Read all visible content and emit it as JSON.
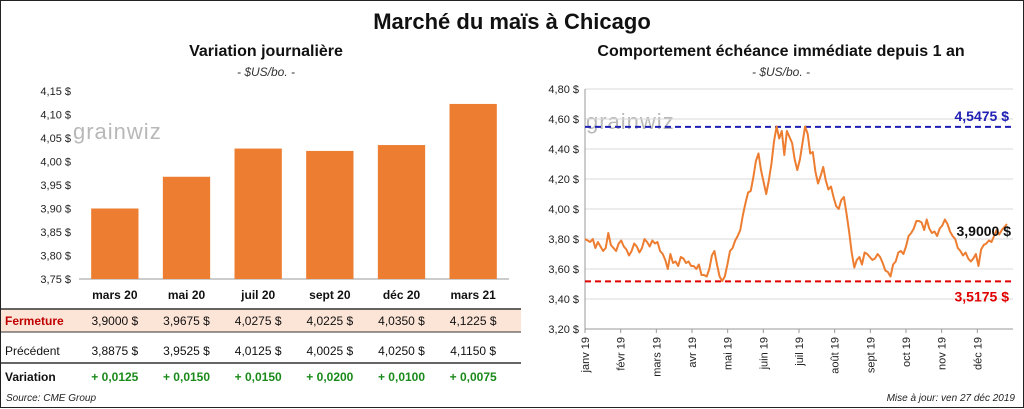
{
  "title": "Marché du maïs à Chicago",
  "left_panel": {
    "title": "Variation  journalière",
    "unit": "- $US/bo. -"
  },
  "right_panel": {
    "title": "Comportement  échéance immédiate depuis 1 an",
    "unit": "- $US/bo. -"
  },
  "watermark": "grainwiz",
  "colors": {
    "bar": "#ED7D31",
    "line": "#ED7D31",
    "high_line": "#1F1FB4",
    "low_line": "#E00000",
    "fermeture_row": "#FCE4D6",
    "positive": "#1a8a1a"
  },
  "chart_data": [
    {
      "type": "bar",
      "categories": [
        "mars 20",
        "mai 20",
        "juil 20",
        "sept 20",
        "déc 20",
        "mars 21"
      ],
      "values": [
        3.9,
        3.9675,
        4.0275,
        4.0225,
        4.035,
        4.1225
      ],
      "ylim": [
        3.75,
        4.15
      ],
      "y_ticks": [
        3.75,
        3.8,
        3.85,
        3.9,
        3.95,
        4.0,
        4.05,
        4.1,
        4.15
      ],
      "y_tick_labels": [
        "3,75 $",
        "3,80 $",
        "3,85 $",
        "3,90 $",
        "3,95 $",
        "4,00 $",
        "4,05 $",
        "4,10 $",
        "4,15 $"
      ]
    },
    {
      "type": "line",
      "x_labels": [
        "janv 19",
        "févr 19",
        "mars 19",
        "avr 19",
        "mai 19",
        "juin 19",
        "juil 19",
        "août 19",
        "sept 19",
        "oct 19",
        "nov 19",
        "déc 19"
      ],
      "x_month_start": "janv 19",
      "values": [
        3.8,
        3.79,
        3.78,
        3.8,
        3.74,
        3.78,
        3.75,
        3.72,
        3.74,
        3.84,
        3.76,
        3.74,
        3.72,
        3.77,
        3.79,
        3.75,
        3.73,
        3.69,
        3.72,
        3.77,
        3.75,
        3.71,
        3.74,
        3.8,
        3.78,
        3.75,
        3.79,
        3.77,
        3.78,
        3.72,
        3.7,
        3.66,
        3.6,
        3.7,
        3.64,
        3.65,
        3.62,
        3.68,
        3.67,
        3.64,
        3.65,
        3.62,
        3.62,
        3.6,
        3.63,
        3.56,
        3.56,
        3.55,
        3.6,
        3.69,
        3.72,
        3.63,
        3.55,
        3.52,
        3.55,
        3.63,
        3.72,
        3.74,
        3.79,
        3.82,
        3.86,
        3.96,
        4.04,
        4.11,
        4.12,
        4.21,
        4.32,
        4.37,
        4.26,
        4.18,
        4.1,
        4.19,
        4.3,
        4.45,
        4.55,
        4.47,
        4.52,
        4.36,
        4.52,
        4.48,
        4.44,
        4.33,
        4.26,
        4.33,
        4.44,
        4.55,
        4.5,
        4.37,
        4.38,
        4.25,
        4.17,
        4.22,
        4.28,
        4.19,
        4.13,
        4.15,
        4.08,
        4.02,
        4.0,
        4.06,
        4.08,
        3.97,
        3.85,
        3.71,
        3.61,
        3.66,
        3.68,
        3.63,
        3.71,
        3.7,
        3.68,
        3.66,
        3.67,
        3.7,
        3.68,
        3.64,
        3.59,
        3.58,
        3.55,
        3.63,
        3.65,
        3.71,
        3.72,
        3.7,
        3.75,
        3.82,
        3.84,
        3.87,
        3.92,
        3.92,
        3.91,
        3.86,
        3.93,
        3.87,
        3.84,
        3.85,
        3.82,
        3.87,
        3.89,
        3.93,
        3.9,
        3.85,
        3.82,
        3.8,
        3.74,
        3.72,
        3.69,
        3.71,
        3.67,
        3.65,
        3.67,
        3.7,
        3.62,
        3.73,
        3.76,
        3.77,
        3.79,
        3.78,
        3.82,
        3.86,
        3.83,
        3.86,
        3.88,
        3.9
      ],
      "ylim": [
        3.2,
        4.8
      ],
      "y_ticks": [
        3.2,
        3.4,
        3.6,
        3.8,
        4.0,
        4.2,
        4.4,
        4.6,
        4.8
      ],
      "y_tick_labels": [
        "3,20 $",
        "3,40 $",
        "3,60 $",
        "3,80 $",
        "4,00 $",
        "4,20 $",
        "4,40 $",
        "4,60 $",
        "4,80 $"
      ],
      "high": 4.5475,
      "high_label": "4,5475 $",
      "low": 3.5175,
      "low_label": "3,5175 $",
      "last_label": "3,9000 $"
    }
  ],
  "table": {
    "rows": [
      {
        "label": "Fermeture",
        "values": [
          "3,9000  $",
          "3,9675  $",
          "4,0275  $",
          "4,0225  $",
          "4,0350  $",
          "4,1225  $"
        ]
      },
      {
        "label": "Précédent",
        "values": [
          "3,8875  $",
          "3,9525  $",
          "4,0125  $",
          "4,0025  $",
          "4,0250  $",
          "4,1150  $"
        ]
      },
      {
        "label": "Variation",
        "values": [
          "+ 0,0125",
          "+ 0,0150",
          "+ 0,0150",
          "+ 0,0200",
          "+ 0,0100",
          "+ 0,0075"
        ]
      }
    ]
  },
  "source": "Source: CME Group",
  "updated": "Mise à jour: ven 27 déc 2019"
}
